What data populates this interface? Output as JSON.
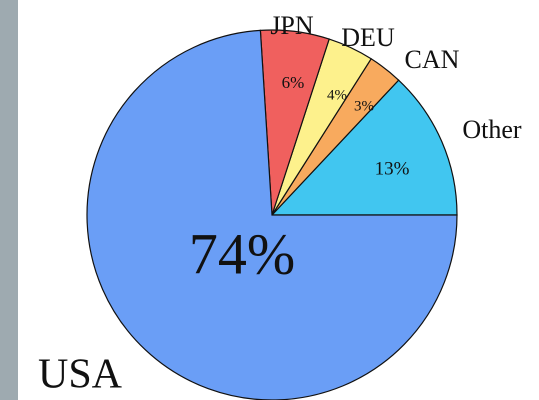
{
  "chart_data": {
    "type": "pie",
    "categories": [
      "Other",
      "CAN",
      "DEU",
      "JPN",
      "USA"
    ],
    "values": [
      13,
      3,
      4,
      6,
      74
    ],
    "value_labels": [
      "13%",
      "3%",
      "4%",
      "6%",
      "74%"
    ],
    "colors": [
      "#41c6f0",
      "#f8aa5e",
      "#fdf18c",
      "#f0605e",
      "#6a9ef6"
    ]
  }
}
